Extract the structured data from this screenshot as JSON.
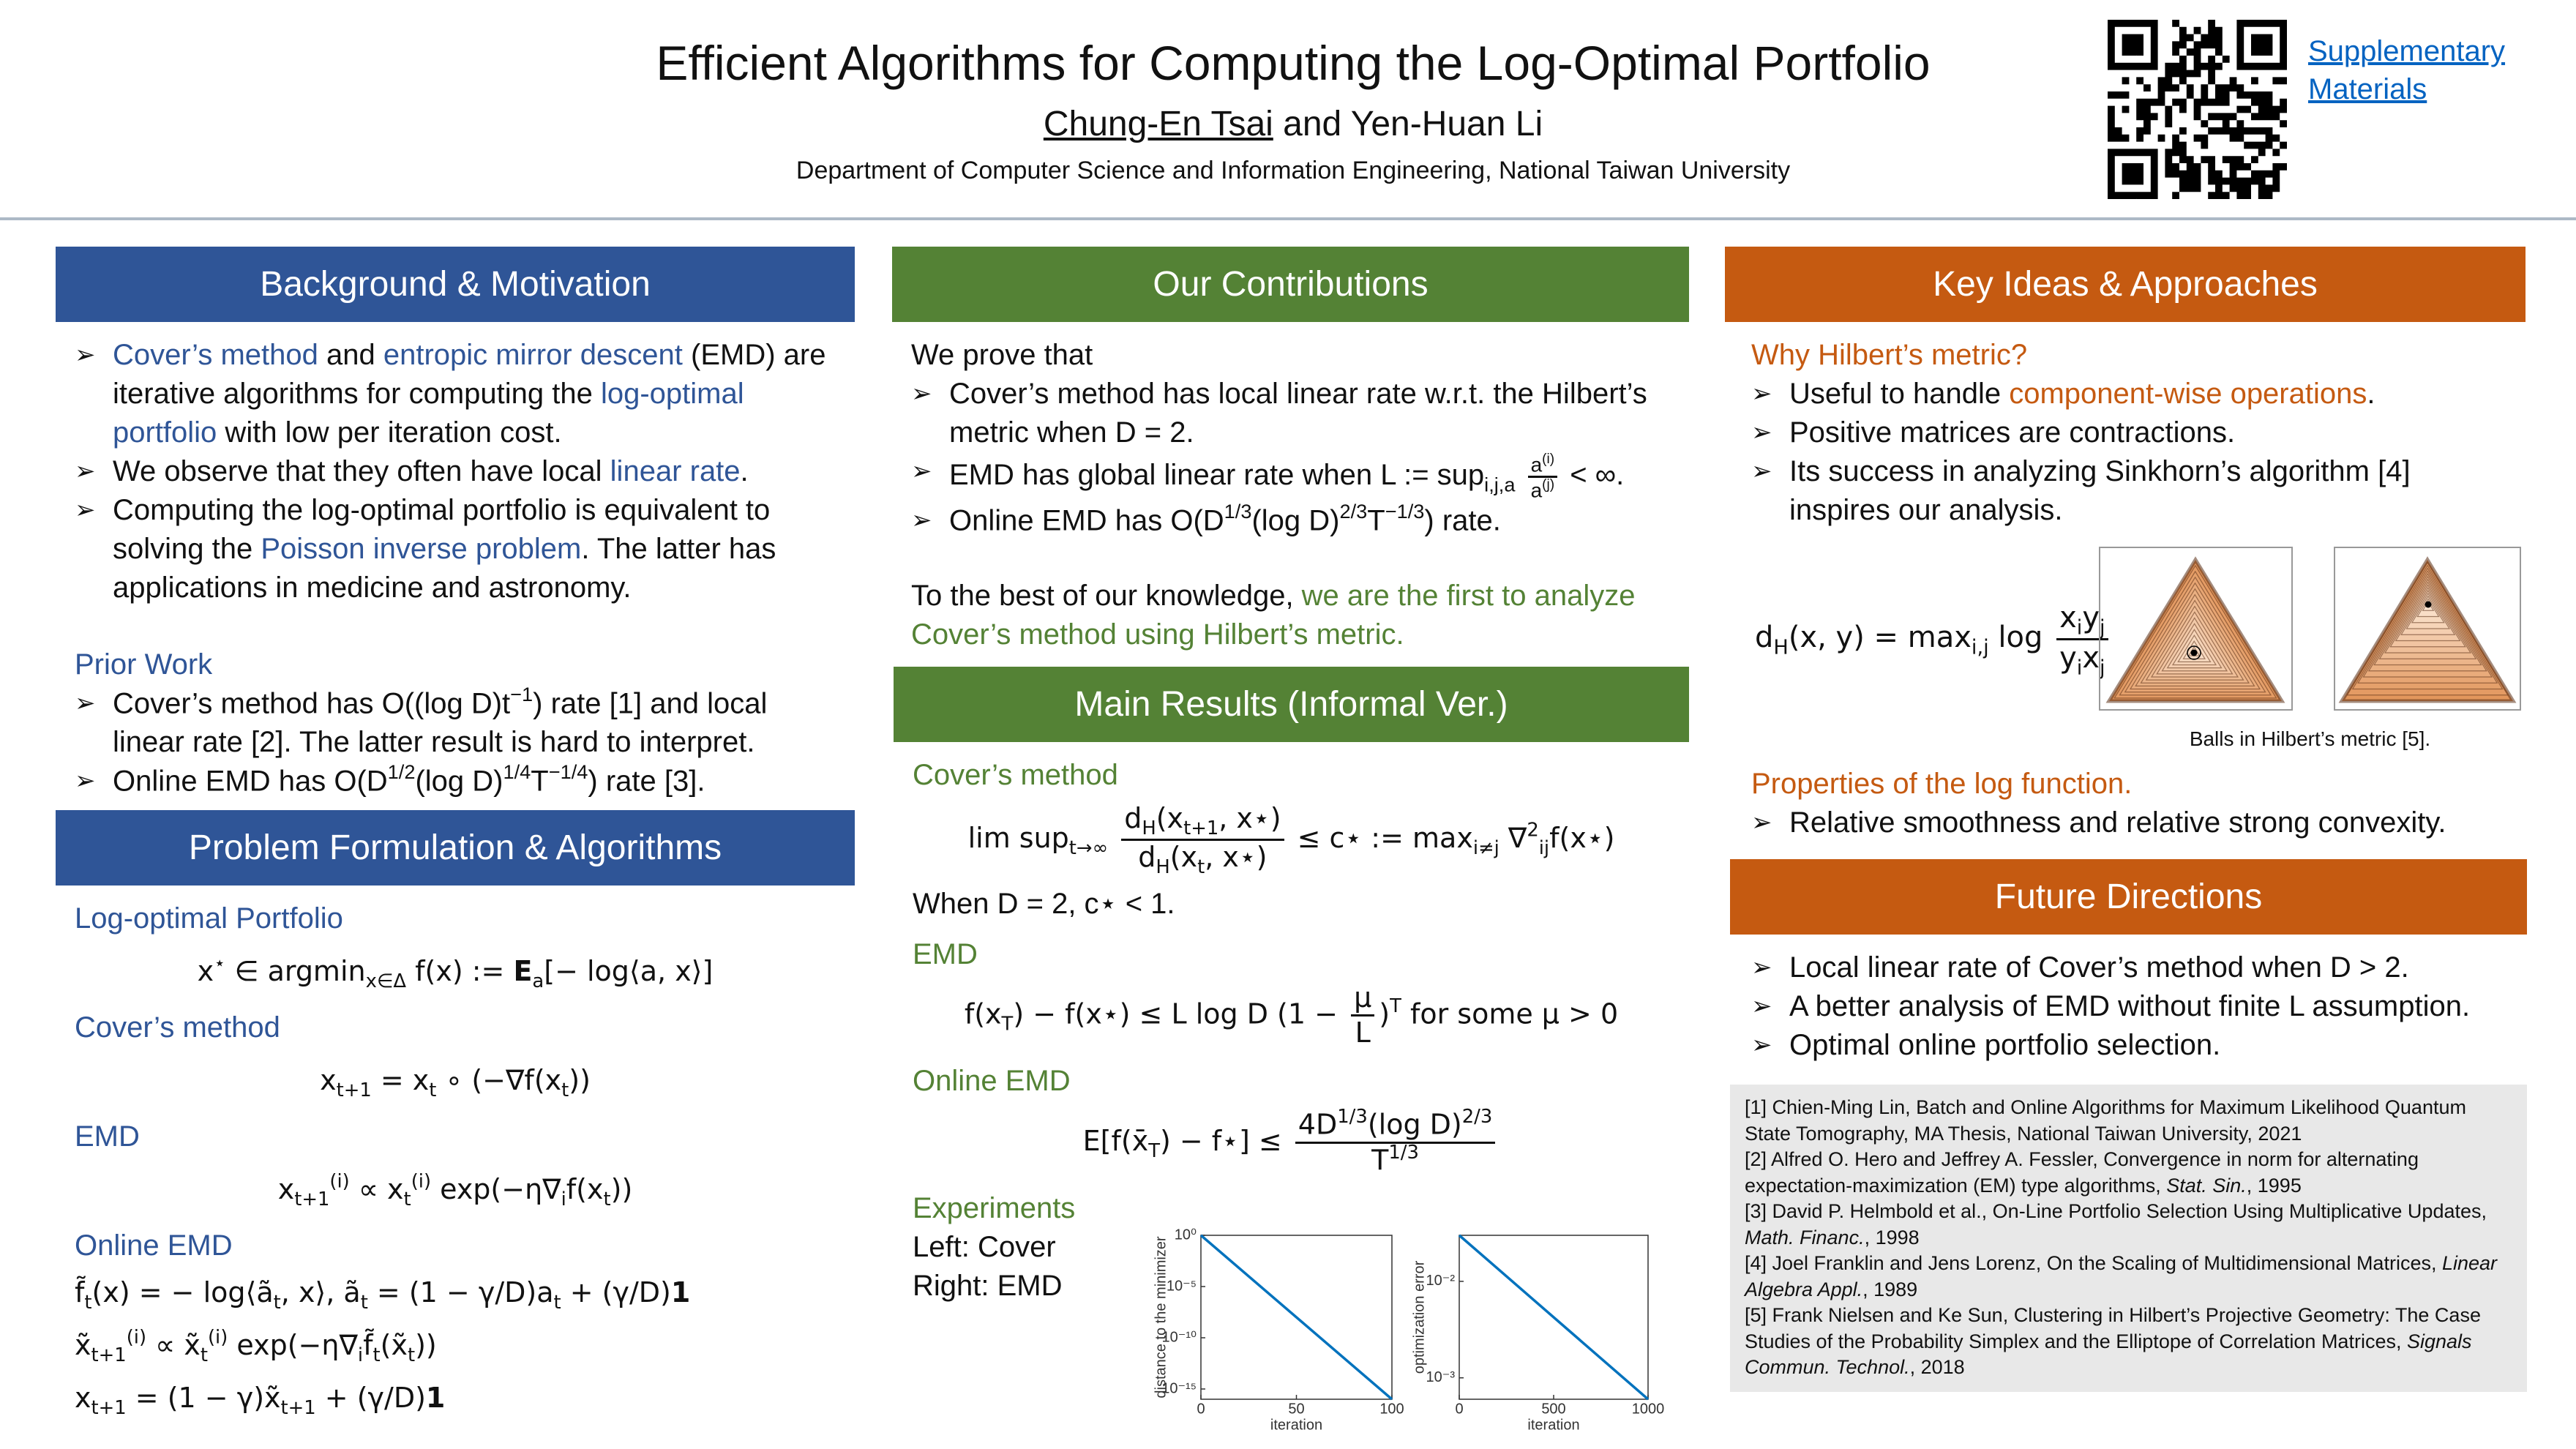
{
  "header": {
    "title": "Efficient Algorithms for Computing the Log-Optimal Portfolio",
    "authors": [
      "Chung-En Tsai",
      "and Yen-Huan Li"
    ],
    "affiliation": "Department of Computer Science and Information Engineering, National Taiwan University",
    "link": [
      "Supplementary",
      "Materials"
    ]
  },
  "sections": [
    {
      "heading": "Background & Motivation",
      "color": "#2f5597",
      "items": [
        {
          "bullet": [
            {
              "text": "Cover’s method",
              "color": "#2f5597"
            },
            " and ",
            {
              "text": "entropic mirror descent",
              "color": "#2f5597"
            },
            " (EMD) are iterative algorithms for computing the ",
            {
              "text": "log-optimal portfolio",
              "color": "#2f5597"
            },
            " with low per iteration cost."
          ]
        },
        {
          "bullet": [
            "We observe that they often have local ",
            {
              "text": "linear rate",
              "color": "#2f5597"
            },
            "."
          ]
        },
        {
          "bullet": [
            "Computing the log-optimal portfolio is equivalent to solving the ",
            {
              "text": "Poisson inverse problem",
              "color": "#2f5597"
            },
            ". The latter has applications in medicine and astronomy."
          ]
        },
        {
          "subhead": "Prior Work"
        },
        {
          "bullet": [
            "Cover’s method has O((log D)t",
            {
              "text": "−1",
              "sup": true
            },
            ") rate [1] and local linear rate [2]. The latter result is hard to interpret."
          ]
        },
        {
          "bullet": [
            "Online EMD has O(D",
            {
              "text": "1/2",
              "sup": true
            },
            "(log D)",
            {
              "text": "1/4",
              "sup": true
            },
            "T",
            {
              "text": "−1/4",
              "sup": true
            },
            ") rate [3]."
          ]
        }
      ]
    },
    {
      "heading": "Problem Formulation & Algorithms",
      "color": "#2f5597",
      "items": [
        {
          "subhead": "Log-optimal Portfolio"
        },
        {
          "math": [
            "x",
            {
              "text": "⋆",
              "sup": true
            },
            " ∈ argmin",
            {
              "text": "x∈Δ",
              "sub": true
            },
            " f(x) := ",
            {
              "text": "E",
              "bold": true
            },
            {
              "text": "a",
              "sub": true
            },
            "[− log⟨a, x⟩]"
          ]
        },
        {
          "subhead": "Cover’s method"
        },
        {
          "math": [
            "x",
            {
              "text": "t+1",
              "sub": true
            },
            " = x",
            {
              "text": "t",
              "sub": true
            },
            " ∘ (−∇f(x",
            {
              "text": "t",
              "sub": true
            },
            "))"
          ]
        },
        {
          "subhead": "EMD"
        },
        {
          "math": [
            "x",
            {
              "text": "t+1",
              "sub": true
            },
            {
              "text": "(i)",
              "sup": true
            },
            " ∝ x",
            {
              "text": "t",
              "sub": true
            },
            {
              "text": "(i)",
              "sup": true
            },
            " exp(−η∇",
            {
              "text": "i",
              "sub": true
            },
            "f(x",
            {
              "text": "t",
              "sub": true
            },
            "))"
          ]
        },
        {
          "subhead": "Online EMD"
        },
        {
          "eqn": [
            "f̃",
            {
              "text": "t",
              "sub": true
            },
            "(x) = − log⟨ã",
            {
              "text": "t",
              "sub": true
            },
            ", x⟩,    ã",
            {
              "text": "t",
              "sub": true
            },
            " = (1 − γ/D)a",
            {
              "text": "t",
              "sub": true
            },
            " + (γ/D)",
            {
              "text": "1",
              "bold": true
            }
          ]
        },
        {
          "eqn": [
            "x̃",
            {
              "text": "t+1",
              "sub": true
            },
            {
              "text": "(i)",
              "sup": true
            },
            " ∝ x̃",
            {
              "text": "t",
              "sub": true
            },
            {
              "text": "(i)",
              "sup": true
            },
            " exp(−η∇",
            {
              "text": "i",
              "sub": true
            },
            "f̃",
            {
              "text": "t",
              "sub": true
            },
            "(x̃",
            {
              "text": "t",
              "sub": true
            },
            "))"
          ]
        },
        {
          "eqn": [
            "x",
            {
              "text": "t+1",
              "sub": true
            },
            " = (1 − γ)x̃",
            {
              "text": "t+1",
              "sub": true
            },
            " + (γ/D)",
            {
              "text": "1",
              "bold": true
            }
          ]
        }
      ]
    },
    {
      "heading": "Our Contributions",
      "color": "#548235",
      "items": [
        {
          "text": "We prove that"
        },
        {
          "bullet": "Cover’s method has local linear rate w.r.t. the Hilbert’s metric when D = 2."
        },
        {
          "bullet": [
            "EMD has global linear rate when L := sup",
            {
              "text": "i,j,a",
              "sub": true
            },
            " ",
            {
              "num": [
                "a",
                {
                  "text": "(i)",
                  "sup": true
                }
              ],
              "den": [
                "a",
                {
                  "text": "(j)",
                  "sup": true
                }
              ]
            },
            " < ∞."
          ]
        },
        {
          "bullet": [
            "Online EMD has O(D",
            {
              "text": "1/3",
              "sup": true
            },
            "(log D)",
            {
              "text": "2/3",
              "sup": true
            },
            "T",
            {
              "text": "−1/3",
              "sup": true
            },
            ") rate."
          ]
        },
        {
          "text": [
            "To the best of our knowledge, ",
            {
              "text": "we are the first to analyze Cover’s method using Hilbert’s metric.",
              "color": "#548235"
            }
          ]
        }
      ]
    },
    {
      "heading": "Main Results (Informal Ver.)",
      "color": "#548235",
      "items": [
        {
          "subhead": "Cover’s method"
        },
        {
          "math": [
            "lim sup",
            {
              "text": "t→∞",
              "sub": true
            },
            " ",
            {
              "num": [
                "d",
                {
                  "text": "H",
                  "sub": true
                },
                "(x",
                {
                  "text": "t+1",
                  "sub": true
                },
                ", x⋆)"
              ],
              "den": [
                "d",
                {
                  "text": "H",
                  "sub": true
                },
                "(x",
                {
                  "text": "t",
                  "sub": true
                },
                ", x⋆)"
              ]
            },
            " ≤ c⋆ := max",
            {
              "text": "i≠j",
              "sub": true
            },
            " ∇",
            {
              "text": "2",
              "sup": true
            },
            {
              "text": "ij",
              "sub": true
            },
            "f(x⋆)"
          ]
        },
        {
          "text": "When D = 2,  c⋆ < 1."
        },
        {
          "subhead": "EMD"
        },
        {
          "math": [
            "f(x",
            {
              "text": "T",
              "sub": true
            },
            ") − f(x⋆) ≤ L log D (1 − ",
            {
              "num": [
                "μ"
              ],
              "den": [
                "L"
              ]
            },
            ")",
            {
              "text": "T",
              "sup": true
            },
            "  for some μ > 0"
          ]
        },
        {
          "subhead": "Online EMD"
        },
        {
          "math": [
            "E[f(x̄",
            {
              "text": "T",
              "sub": true
            },
            ") − f⋆] ≤ ",
            {
              "num": [
                "4D",
                {
                  "text": "1/3",
                  "sup": true
                },
                "(log D)",
                {
                  "text": "2/3",
                  "sup": true
                }
              ],
              "den": [
                "T",
                {
                  "text": "1/3",
                  "sup": true
                }
              ]
            }
          ]
        },
        {
          "subhead": "Experiments"
        },
        {
          "text": "Left: Cover"
        },
        {
          "text": "Right: EMD"
        }
      ]
    },
    {
      "heading": "Key Ideas & Approaches",
      "color": "#c55a11",
      "items": [
        {
          "subhead": "Why Hilbert’s metric?"
        },
        {
          "bullet": [
            "Useful to handle ",
            {
              "text": "component-wise operations",
              "color": "#c55a11"
            },
            "."
          ]
        },
        {
          "bullet": "Positive matrices are contractions."
        },
        {
          "bullet": "Its success in analyzing Sinkhorn’s algorithm [4] inspires our analysis."
        }
      ],
      "formula": [
        "d",
        {
          "text": "H",
          "sub": true
        },
        "(x, y) = max",
        {
          "text": "i,j",
          "sub": true
        },
        " log ",
        {
          "num": [
            "x",
            {
              "text": "i",
              "sub": true
            },
            "y",
            {
              "text": "j",
              "sub": true
            }
          ],
          "den": [
            "y",
            {
              "text": "i",
              "sub": true
            },
            "x",
            {
              "text": "j",
              "sub": true
            }
          ]
        }
      ],
      "caption": "Balls in Hilbert’s metric [5].",
      "items_after": [
        {
          "subhead": "Properties of the log function."
        },
        {
          "bullet": "Relative smoothness and relative strong convexity."
        }
      ]
    },
    {
      "heading": "Future Directions",
      "color": "#c55a11",
      "items": [
        {
          "bullet": "Local linear rate of Cover’s method when D > 2."
        },
        {
          "bullet": "A better analysis of EMD without finite L assumption."
        },
        {
          "bullet": "Optimal online portfolio selection."
        }
      ]
    }
  ],
  "references": [
    [
      "[1] Chien-Ming Lin, Batch and Online Algorithms for Maximum Likelihood Quantum State Tomography, MA Thesis, National Taiwan University, 2021"
    ],
    [
      "[2] Alfred O. Hero and Jeffrey A. Fessler, Convergence in norm for alternating expectation-maximization (EM) type algorithms, ",
      {
        "text": "Stat. Sin.",
        "italic": true
      },
      ", 1995"
    ],
    [
      "[3] David P. Helmbold et al., On-Line Portfolio Selection Using Multiplicative Updates, ",
      {
        "text": "Math. Financ.",
        "italic": true
      },
      ", 1998"
    ],
    [
      "[4] Joel Franklin and Jens Lorenz, On the Scaling of Multidimensional Matrices, ",
      {
        "text": "Linear Algebra Appl.",
        "italic": true
      },
      ", 1989"
    ],
    [
      "[5] Frank Nielsen and Ke Sun, Clustering in Hilbert’s Projective Geometry: The Case Studies of the Probability Simplex and the Elliptope of Correlation Matrices, ",
      {
        "text": "Signals Commun. Technol.",
        "italic": true
      },
      ", 2018"
    ]
  ],
  "chart_data": [
    {
      "type": "line",
      "x_label": "iteration",
      "y_label": "distance to the minimizer",
      "x": [
        0,
        100
      ],
      "values": [
        1,
        1e-16
      ],
      "color": "#0072bd",
      "xlim": [
        0,
        100
      ],
      "ylim": [
        1e-16,
        1
      ],
      "ylog": true,
      "xticks": [
        0,
        50,
        100
      ],
      "yticks": [
        {
          "value": 1,
          "label": "10⁰"
        },
        {
          "value": 1e-05,
          "label": "10⁻⁵"
        },
        {
          "value": 1e-10,
          "label": "10⁻¹⁰"
        },
        {
          "value": 1e-15,
          "label": "10⁻¹⁵"
        }
      ]
    },
    {
      "type": "line",
      "x_label": "iteration",
      "y_label": "optimization error",
      "x": [
        0,
        1000
      ],
      "values": [
        0.03,
        0.0006
      ],
      "color": "#0072bd",
      "xlim": [
        0,
        1000
      ],
      "ylim": [
        0.0006,
        0.03
      ],
      "ylog": true,
      "xticks": [
        0,
        500,
        1000
      ],
      "yticks": [
        {
          "value": 0.01,
          "label": "10⁻²"
        },
        {
          "value": 0.001,
          "label": "10⁻³"
        }
      ]
    }
  ]
}
